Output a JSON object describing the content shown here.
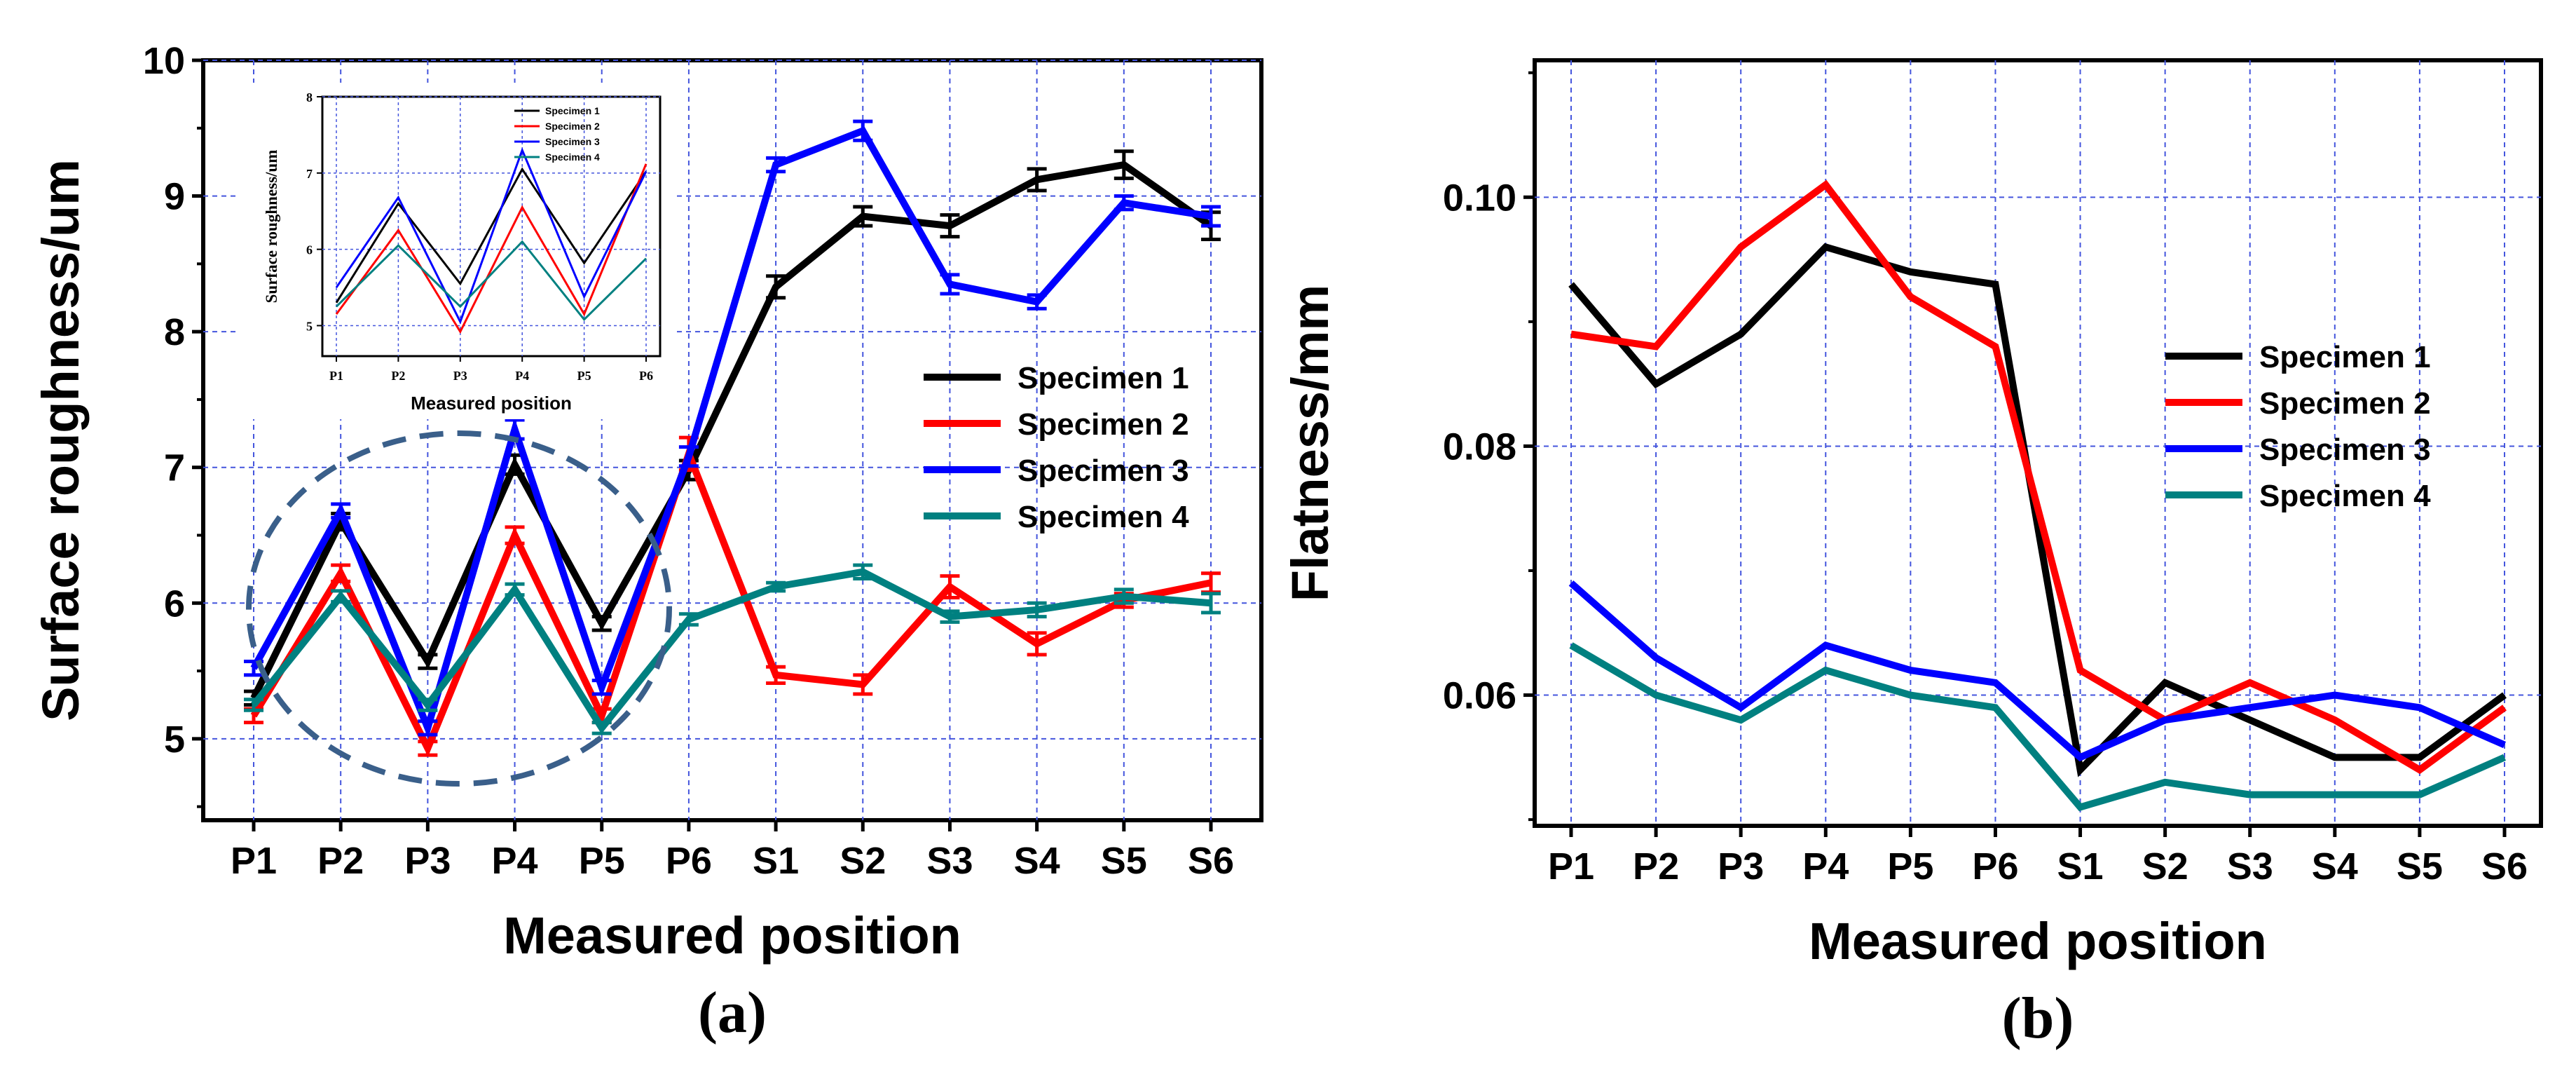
{
  "chart_data": [
    {
      "id": "panel-a",
      "type": "line",
      "panel_label": "(a)",
      "title": "",
      "xlabel": "Measured position",
      "ylabel": "Surface roughness/um",
      "categories": [
        "P1",
        "P2",
        "P3",
        "P4",
        "P5",
        "P6",
        "S1",
        "S2",
        "S3",
        "S4",
        "S5",
        "S6"
      ],
      "ylim": [
        4.4,
        10
      ],
      "yticks": [
        5,
        6,
        7,
        8,
        9,
        10
      ],
      "grid": true,
      "legend_position": "center-right",
      "error_bars": true,
      "series": [
        {
          "name": "Specimen 1",
          "color": "#000000",
          "values": [
            5.3,
            6.6,
            5.57,
            7.02,
            5.85,
            6.98,
            8.33,
            8.85,
            8.78,
            9.12,
            9.23,
            8.78
          ],
          "errors": [
            0.05,
            0.06,
            0.05,
            0.07,
            0.05,
            0.07,
            0.08,
            0.07,
            0.08,
            0.08,
            0.1,
            0.1
          ]
        },
        {
          "name": "Specimen 2",
          "color": "#ff0000",
          "values": [
            5.17,
            6.22,
            4.93,
            6.5,
            5.17,
            7.1,
            5.47,
            5.4,
            6.12,
            5.7,
            6.02,
            6.15
          ],
          "errors": [
            0.05,
            0.06,
            0.05,
            0.06,
            0.05,
            0.12,
            0.06,
            0.07,
            0.08,
            0.08,
            0.05,
            0.07
          ]
        },
        {
          "name": "Specimen 3",
          "color": "#0000ff",
          "values": [
            5.52,
            6.68,
            5.08,
            7.28,
            5.38,
            7.08,
            9.23,
            9.48,
            8.35,
            8.22,
            8.95,
            8.85
          ],
          "errors": [
            0.05,
            0.05,
            0.05,
            0.07,
            0.05,
            0.07,
            0.05,
            0.07,
            0.07,
            0.05,
            0.05,
            0.07
          ]
        },
        {
          "name": "Specimen 4",
          "color": "#008080",
          "values": [
            5.25,
            6.05,
            5.25,
            6.1,
            5.08,
            5.88,
            6.12,
            6.23,
            5.9,
            5.95,
            6.05,
            6.0
          ],
          "errors": [
            0.04,
            0.04,
            0.04,
            0.04,
            0.04,
            0.04,
            0.03,
            0.05,
            0.04,
            0.05,
            0.05,
            0.07
          ]
        }
      ],
      "inset": {
        "type": "line",
        "xlabel": "Measured position",
        "ylabel": "Surface roughness/um",
        "categories": [
          "P1",
          "P2",
          "P3",
          "P4",
          "P5",
          "P6"
        ],
        "ylim": [
          4.6,
          8
        ],
        "yticks": [
          5,
          6,
          7,
          8
        ],
        "series": [
          {
            "name": "Specimen 1",
            "color": "#000000",
            "values": [
              5.3,
              6.6,
              5.55,
              7.05,
              5.82,
              7.02
            ]
          },
          {
            "name": "Specimen 2",
            "color": "#ff0000",
            "values": [
              5.15,
              6.25,
              4.92,
              6.55,
              5.15,
              7.12
            ]
          },
          {
            "name": "Specimen 3",
            "color": "#0000ff",
            "values": [
              5.5,
              6.68,
              5.05,
              7.3,
              5.38,
              7.02
            ]
          },
          {
            "name": "Specimen 4",
            "color": "#008080",
            "values": [
              5.25,
              6.05,
              5.25,
              6.1,
              5.08,
              5.88
            ]
          }
        ]
      }
    },
    {
      "id": "panel-b",
      "type": "line",
      "panel_label": "(b)",
      "title": "",
      "xlabel": "Measured position",
      "ylabel": "Flatness/mm",
      "categories": [
        "P1",
        "P2",
        "P3",
        "P4",
        "P5",
        "P6",
        "S1",
        "S2",
        "S3",
        "S4",
        "S5",
        "S6"
      ],
      "ylim": [
        0.0495,
        0.111
      ],
      "yticks": [
        "0.06",
        "0.08",
        "0.10"
      ],
      "grid": true,
      "legend_position": "center-right",
      "series": [
        {
          "name": "Specimen 1",
          "color": "#000000",
          "values": [
            0.093,
            0.085,
            0.089,
            0.096,
            0.094,
            0.093,
            0.054,
            0.061,
            0.058,
            0.055,
            0.055,
            0.06
          ]
        },
        {
          "name": "Specimen 2",
          "color": "#ff0000",
          "values": [
            0.089,
            0.088,
            0.096,
            0.101,
            0.092,
            0.088,
            0.062,
            0.058,
            0.061,
            0.058,
            0.054,
            0.059
          ]
        },
        {
          "name": "Specimen 3",
          "color": "#0000ff",
          "values": [
            0.069,
            0.063,
            0.059,
            0.064,
            0.062,
            0.061,
            0.055,
            0.058,
            0.059,
            0.06,
            0.059,
            0.056
          ]
        },
        {
          "name": "Specimen 4",
          "color": "#008080",
          "values": [
            0.064,
            0.06,
            0.058,
            0.062,
            0.06,
            0.059,
            0.051,
            0.053,
            0.052,
            0.052,
            0.052,
            0.055
          ]
        }
      ]
    }
  ]
}
